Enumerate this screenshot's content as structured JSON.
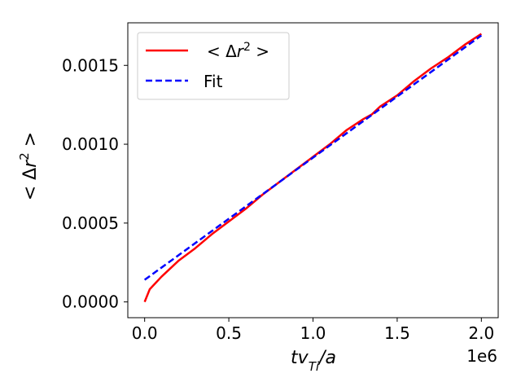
{
  "chart_data": {
    "type": "line",
    "xlabel": "tv_Ti/a",
    "ylabel": "<Δr^2>",
    "x_offset_text": "1e6",
    "xlim": [
      -0.1,
      2.1
    ],
    "ylim": [
      -0.0001,
      0.00177
    ],
    "x_ticks": [
      0.0,
      0.5,
      1.0,
      1.5,
      2.0
    ],
    "x_tick_labels": [
      "0.0",
      "0.5",
      "1.0",
      "1.5",
      "2.0"
    ],
    "y_ticks": [
      0.0,
      0.0005,
      0.001,
      0.0015
    ],
    "y_tick_labels": [
      "0.0000",
      "0.0005",
      "0.0010",
      "0.0015"
    ],
    "legend_position": "top-left",
    "series": [
      {
        "name": "<Δr^2>",
        "color": "#ff0000",
        "style": "solid",
        "x": [
          0.0,
          0.03,
          0.1,
          0.2,
          0.3,
          0.4,
          0.5,
          0.6,
          0.7,
          0.8,
          0.9,
          1.0,
          1.1,
          1.2,
          1.3,
          1.35,
          1.4,
          1.5,
          1.6,
          1.7,
          1.8,
          1.9,
          2.0
        ],
        "y": [
          0.0,
          8e-05,
          0.00016,
          0.00026,
          0.00034,
          0.00043,
          0.00051,
          0.00059,
          0.00068,
          0.00076,
          0.00084,
          0.00092,
          0.001,
          0.00109,
          0.00116,
          0.00119,
          0.00124,
          0.00131,
          0.0014,
          0.00148,
          0.00155,
          0.00163,
          0.0017
        ]
      },
      {
        "name": "Fit",
        "color": "#0000ff",
        "style": "dashed",
        "x": [
          0.0,
          2.0
        ],
        "y": [
          0.00014,
          0.00169
        ]
      }
    ]
  }
}
